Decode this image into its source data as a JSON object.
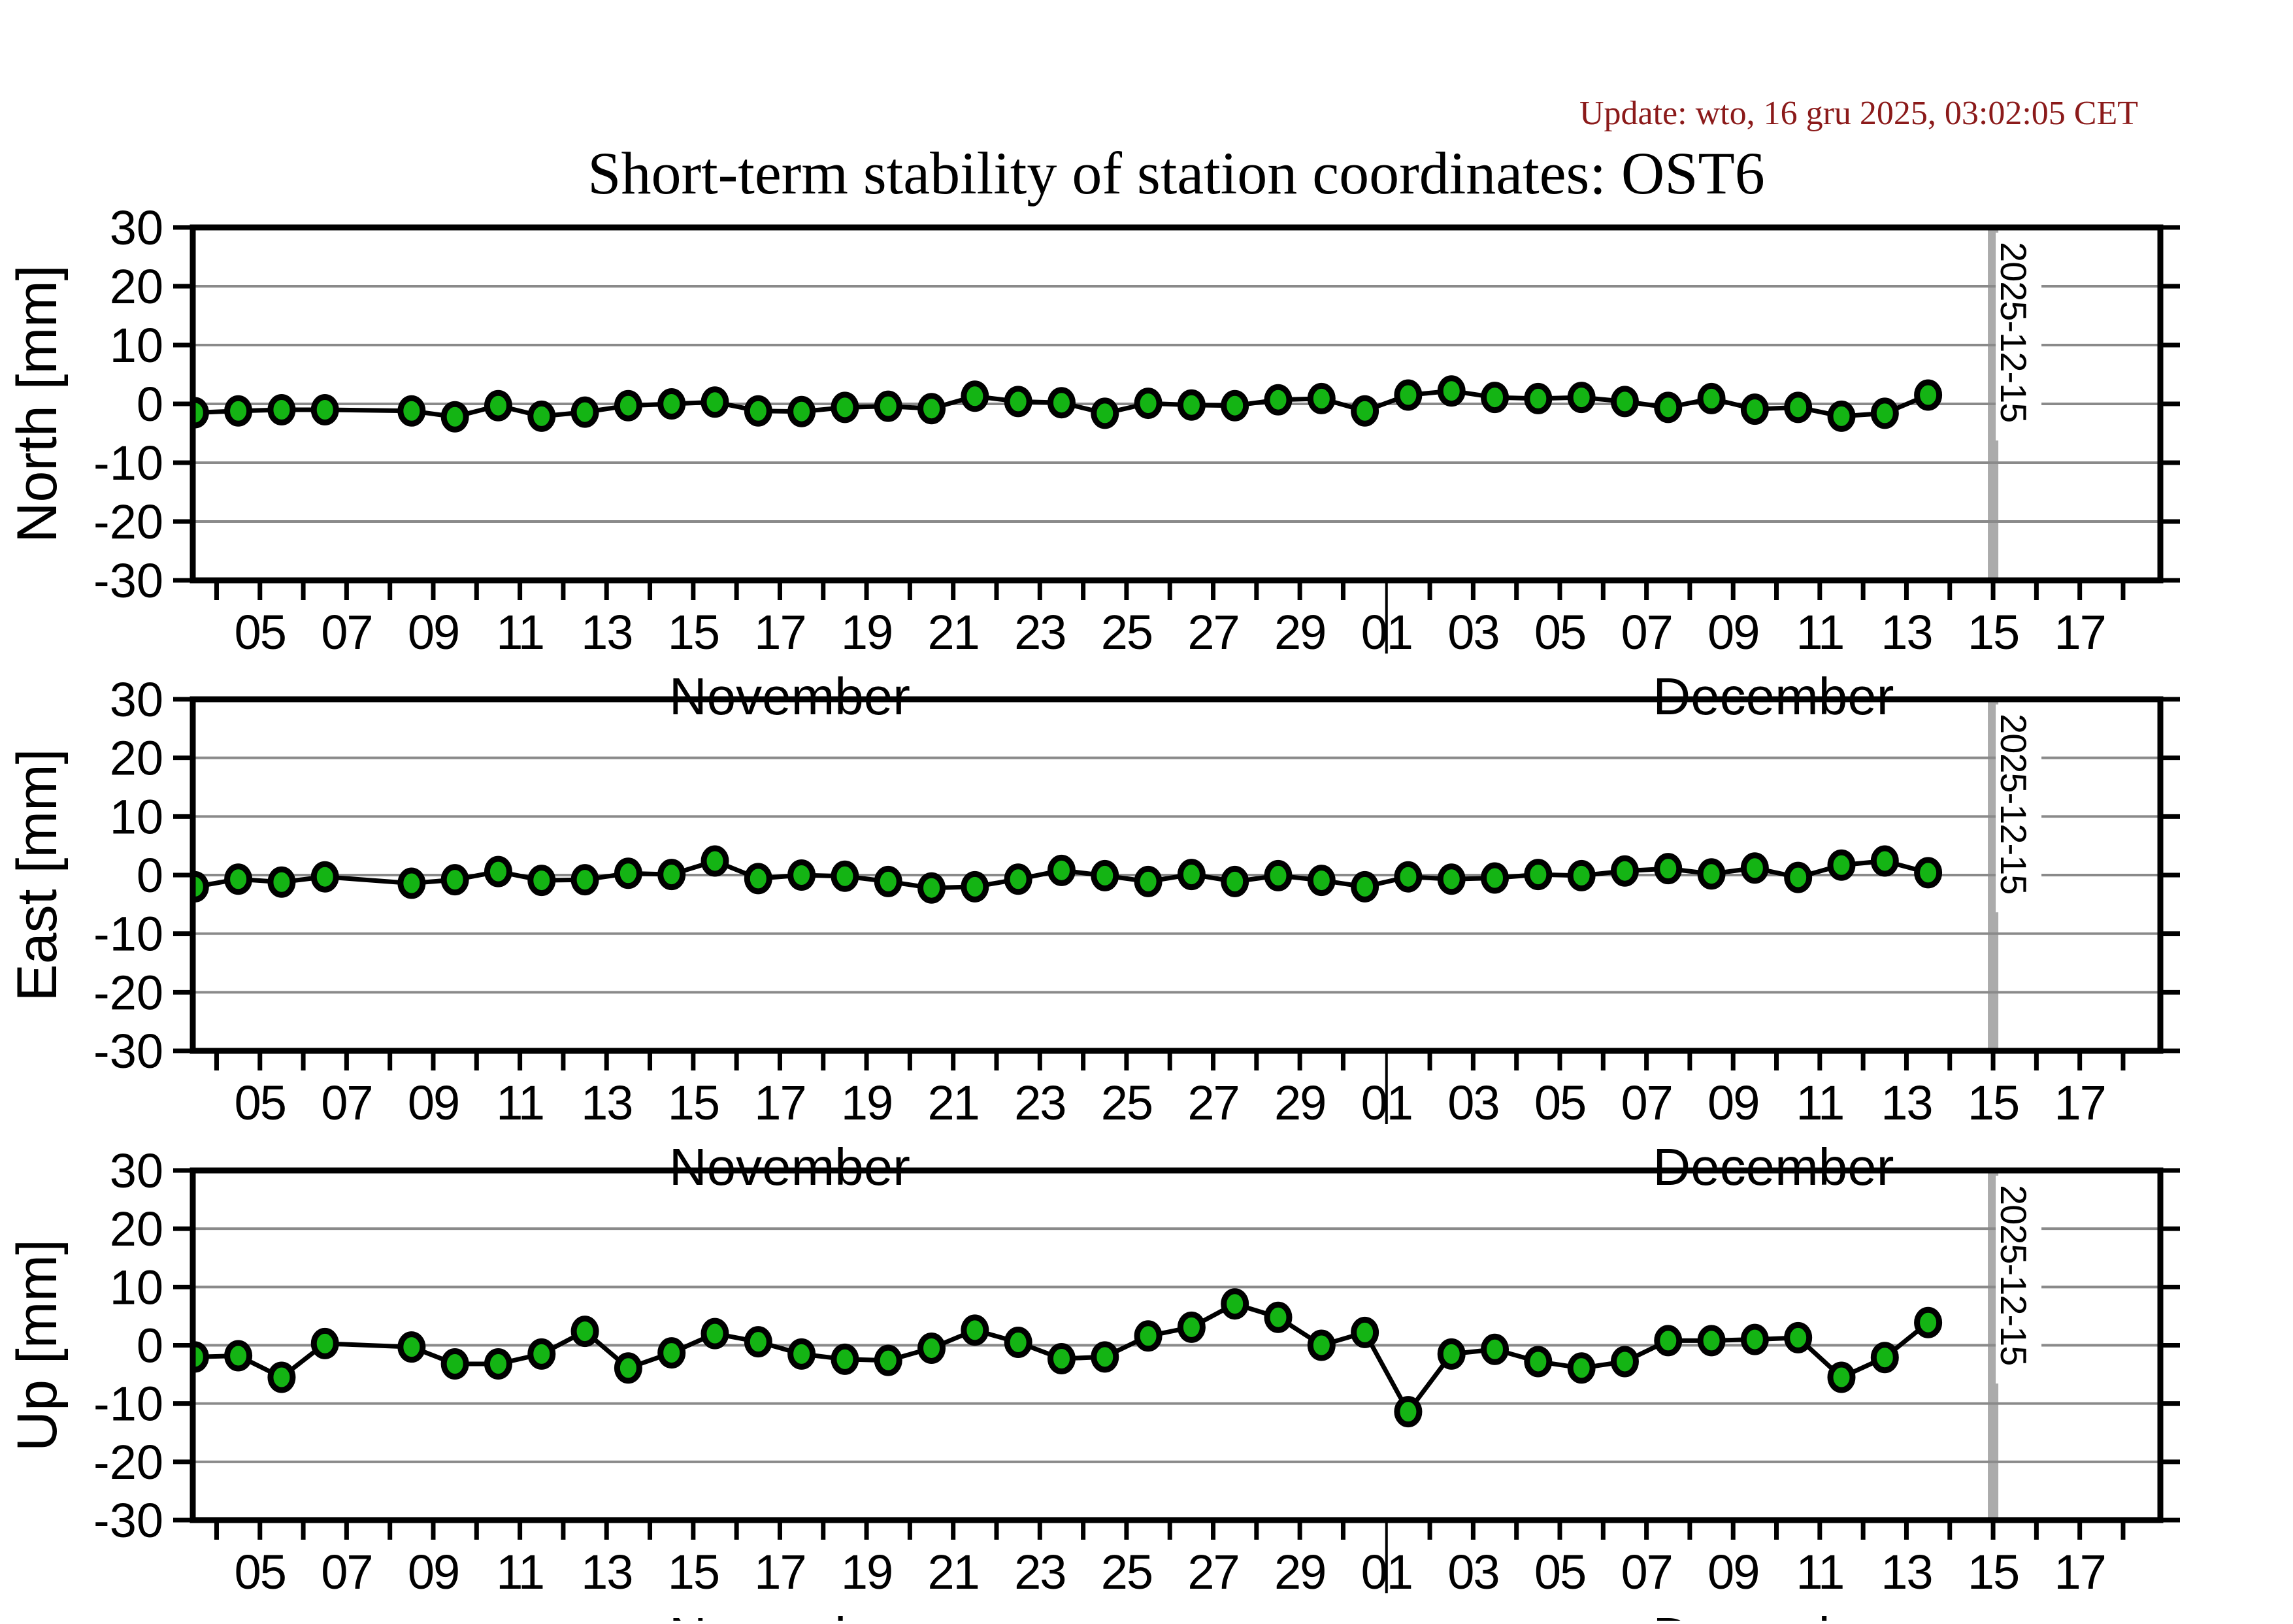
{
  "title": "Short-term stability of station coordinates: OST6",
  "update_note": "Update: wto, 16 gru 2025, 03:02:05 CET",
  "station": "OST6",
  "colors": {
    "background": "#ffffff",
    "update_text": "#8b1a1a",
    "axis": "#000000",
    "grid": "#8a8a8a",
    "line": "#000000",
    "marker_fill": "#14b414",
    "marker_stroke": "#000000",
    "event_bar": "#ababab",
    "event_label_bg": "#ffffff"
  },
  "event_line": {
    "date": "2025-12-15",
    "label": "2025-12-15"
  },
  "x_axis": {
    "month_labels": [
      "November",
      "December"
    ],
    "november_tick_labels": [
      "05",
      "07",
      "09",
      "11",
      "13",
      "15",
      "17",
      "19",
      "21",
      "23",
      "25",
      "27",
      "29"
    ],
    "december_tick_labels": [
      "01",
      "03",
      "05",
      "07",
      "09",
      "11",
      "13",
      "15",
      "17"
    ]
  },
  "y_axis": {
    "tick_labels": [
      "30",
      "20",
      "10",
      "0",
      "-10",
      "-20",
      "-30"
    ],
    "unit": "mm"
  },
  "chart_data": [
    {
      "type": "line",
      "name": "North",
      "ylabel": "North [mm]",
      "ylim": [
        -30,
        30
      ],
      "grid_step": 10,
      "legend_position": "none",
      "marker": "green-filled-circle",
      "dates": [
        "11-03",
        "11-04",
        "11-05",
        "11-06",
        "11-08",
        "11-09",
        "11-10",
        "11-11",
        "11-12",
        "11-13",
        "11-14",
        "11-15",
        "11-16",
        "11-17",
        "11-18",
        "11-19",
        "11-20",
        "11-21",
        "11-22",
        "11-23",
        "11-24",
        "11-25",
        "11-26",
        "11-27",
        "11-28",
        "11-29",
        "11-30",
        "12-01",
        "12-02",
        "12-03",
        "12-04",
        "12-05",
        "12-06",
        "12-07",
        "12-08",
        "12-09",
        "12-10",
        "12-11",
        "12-12",
        "12-13"
      ],
      "values": [
        -1.5,
        -1.2,
        -1.0,
        -1.0,
        -1.2,
        -2.2,
        -0.3,
        -2.1,
        -1.4,
        -0.3,
        0.0,
        0.3,
        -1.2,
        -1.3,
        -0.6,
        -0.4,
        -0.8,
        1.3,
        0.4,
        0.2,
        -1.6,
        0.1,
        -0.2,
        -0.3,
        0.7,
        0.9,
        -1.2,
        1.5,
        2.2,
        1.1,
        0.9,
        1.1,
        0.4,
        -0.6,
        0.9,
        -0.9,
        -0.6,
        -2.1,
        -1.6,
        1.5
      ]
    },
    {
      "type": "line",
      "name": "East",
      "ylabel": "East [mm]",
      "ylim": [
        -30,
        30
      ],
      "grid_step": 10,
      "legend_position": "none",
      "marker": "green-filled-circle",
      "dates": [
        "11-03",
        "11-04",
        "11-05",
        "11-06",
        "11-08",
        "11-09",
        "11-10",
        "11-11",
        "11-12",
        "11-13",
        "11-14",
        "11-15",
        "11-16",
        "11-17",
        "11-18",
        "11-19",
        "11-20",
        "11-21",
        "11-22",
        "11-23",
        "11-24",
        "11-25",
        "11-26",
        "11-27",
        "11-28",
        "11-29",
        "11-30",
        "12-01",
        "12-02",
        "12-03",
        "12-04",
        "12-05",
        "12-06",
        "12-07",
        "12-08",
        "12-09",
        "12-10",
        "12-11",
        "12-12",
        "12-13"
      ],
      "values": [
        -2.0,
        -0.7,
        -1.2,
        -0.3,
        -1.4,
        -0.8,
        0.6,
        -0.9,
        -0.8,
        0.3,
        0.1,
        2.4,
        -0.6,
        0.0,
        -0.2,
        -1.1,
        -2.2,
        -2.0,
        -0.7,
        0.8,
        -0.1,
        -1.1,
        0.1,
        -1.1,
        -0.1,
        -0.9,
        -2.0,
        -0.3,
        -0.7,
        -0.5,
        0.1,
        -0.1,
        0.7,
        1.1,
        0.2,
        1.2,
        -0.4,
        1.7,
        2.4,
        0.4
      ]
    },
    {
      "type": "line",
      "name": "Up",
      "ylabel": "Up [mm]",
      "ylim": [
        -30,
        30
      ],
      "grid_step": 10,
      "legend_position": "none",
      "marker": "green-filled-circle",
      "dates": [
        "11-03",
        "11-04",
        "11-05",
        "11-06",
        "11-08",
        "11-09",
        "11-10",
        "11-11",
        "11-12",
        "11-13",
        "11-14",
        "11-15",
        "11-16",
        "11-17",
        "11-18",
        "11-19",
        "11-20",
        "11-21",
        "11-22",
        "11-23",
        "11-24",
        "11-25",
        "11-26",
        "11-27",
        "11-28",
        "11-29",
        "11-30",
        "12-01",
        "12-02",
        "12-03",
        "12-04",
        "12-05",
        "12-06",
        "12-07",
        "12-08",
        "12-09",
        "12-10",
        "12-11",
        "12-12",
        "12-13"
      ],
      "values": [
        -2.0,
        -1.8,
        -5.5,
        0.3,
        -0.3,
        -3.2,
        -3.2,
        -1.5,
        2.4,
        -3.9,
        -1.3,
        2.0,
        0.6,
        -1.5,
        -2.4,
        -2.6,
        -0.5,
        2.6,
        0.5,
        -2.3,
        -2.0,
        1.6,
        3.1,
        7.1,
        4.8,
        0.0,
        2.2,
        -11.4,
        -1.5,
        -0.7,
        -2.8,
        -3.9,
        -2.8,
        0.8,
        0.8,
        1.0,
        1.3,
        -5.5,
        -2.1,
        3.9
      ]
    }
  ]
}
